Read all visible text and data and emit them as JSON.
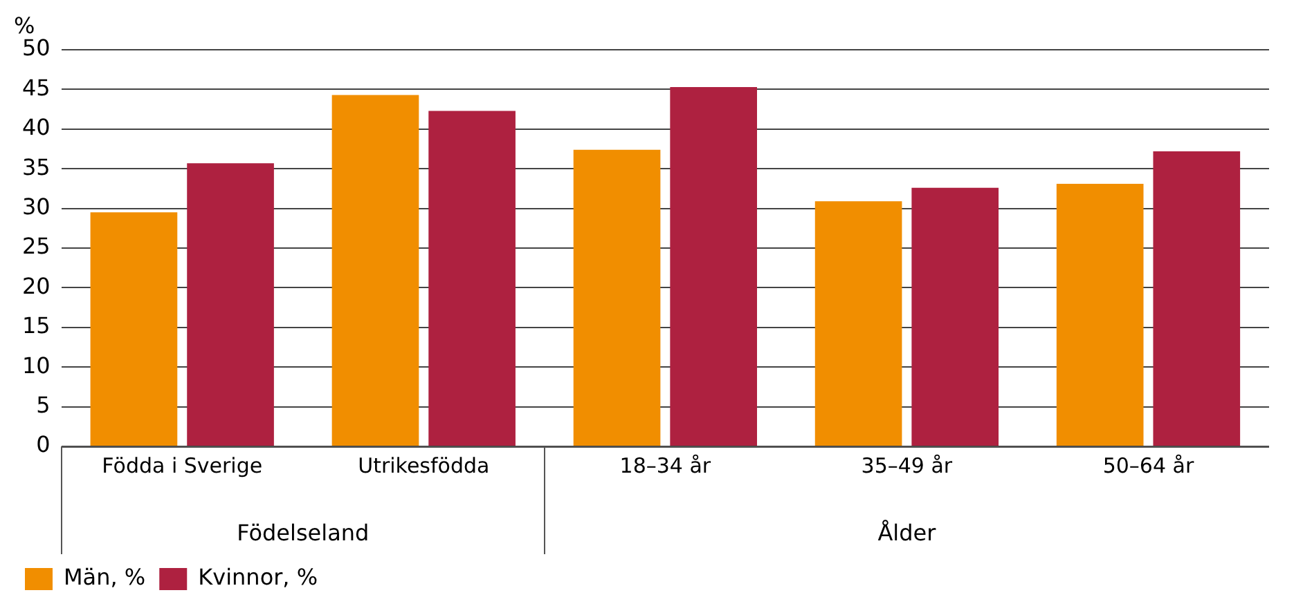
{
  "chart_data": {
    "type": "bar",
    "ylabel": "%",
    "categories": [
      "Födda i Sverige",
      "Utrikesfödda",
      "18–34 år",
      "35–49 år",
      "50–64 år"
    ],
    "series": [
      {
        "name": "Män, %",
        "color": "#f18e00",
        "values": [
          29.5,
          44.3,
          37.4,
          30.9,
          33.1
        ]
      },
      {
        "name": "Kvinnor, %",
        "color": "#ae2140",
        "values": [
          35.7,
          42.3,
          45.3,
          32.6,
          37.2
        ]
      }
    ],
    "ylim": [
      0,
      50
    ],
    "yticks": [
      0,
      5,
      10,
      15,
      20,
      25,
      30,
      35,
      40,
      45,
      50
    ],
    "grid": "y",
    "legend": "bottom left",
    "annotations": [
      "Födelseland",
      "Ålder"
    ]
  }
}
